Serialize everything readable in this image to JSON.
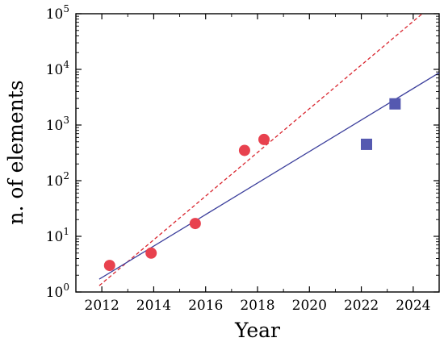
{
  "chart_data": {
    "type": "scatter",
    "x_axis": {
      "label": "Year",
      "range": [
        2011,
        2025
      ],
      "ticks": [
        2012,
        2014,
        2016,
        2018,
        2020,
        2022,
        2024
      ],
      "tick_labels": [
        "2012",
        "2014",
        "2016",
        "2018",
        "2020",
        "2022",
        "2024"
      ]
    },
    "y_axis": {
      "label": "n. of elements",
      "scale": "log",
      "range": [
        1,
        100000
      ],
      "ticks": [
        1,
        10,
        100,
        1000,
        10000,
        100000
      ],
      "tick_labels": [
        {
          "base": "10",
          "exp": "0"
        },
        {
          "base": "10",
          "exp": "1"
        },
        {
          "base": "10",
          "exp": "2"
        },
        {
          "base": "10",
          "exp": "3"
        },
        {
          "base": "10",
          "exp": "4"
        },
        {
          "base": "10",
          "exp": "5"
        }
      ]
    },
    "grid": false,
    "legend": "none",
    "series": [
      {
        "marker": "circle",
        "color": "#e8414e",
        "points": [
          {
            "x": 2012.3,
            "y": 3
          },
          {
            "x": 2013.9,
            "y": 5
          },
          {
            "x": 2015.6,
            "y": 17
          },
          {
            "x": 2017.5,
            "y": 350
          },
          {
            "x": 2018.25,
            "y": 550
          }
        ]
      },
      {
        "marker": "square",
        "color": "#5559b0",
        "points": [
          {
            "x": 2022.2,
            "y": 450
          },
          {
            "x": 2023.3,
            "y": 2400
          }
        ]
      }
    ],
    "fit_lines": [
      {
        "style": "dashed",
        "color": "#d9262f",
        "points": [
          {
            "x": 2011.9,
            "y": 1.3
          },
          {
            "x": 2024.35,
            "y": 100000
          }
        ]
      },
      {
        "style": "solid",
        "color": "#3c3f9c",
        "points": [
          {
            "x": 2011.9,
            "y": 1.7
          },
          {
            "x": 2025,
            "y": 8700
          }
        ]
      }
    ]
  }
}
